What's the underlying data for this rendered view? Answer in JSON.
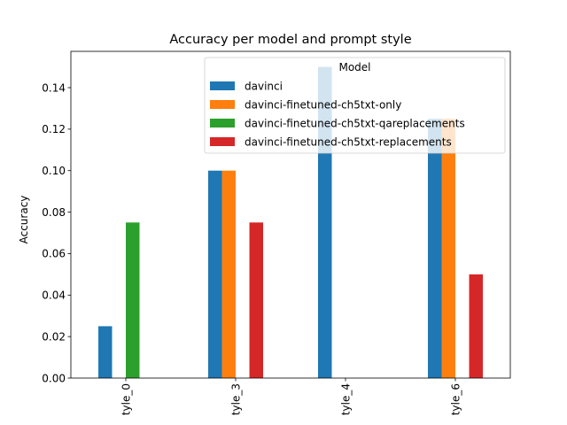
{
  "chart_data": {
    "type": "bar",
    "title": "Accuracy per model and prompt style",
    "xlabel": "",
    "ylabel": "Accuracy",
    "categories": [
      "tyle_0",
      "tyle_3",
      "tyle_4",
      "tyle_6"
    ],
    "ylim": [
      0,
      0.1575
    ],
    "yticks": [
      "0.00",
      "0.02",
      "0.04",
      "0.06",
      "0.08",
      "0.10",
      "0.12",
      "0.14"
    ],
    "legend": {
      "title": "Model",
      "placement": "upper-right"
    },
    "series": [
      {
        "name": "davinci",
        "color": "#1f77b4",
        "values": [
          0.025,
          0.1,
          0.15,
          0.125
        ]
      },
      {
        "name": "davinci-finetuned-ch5txt-only",
        "color": "#ff7f0e",
        "values": [
          0,
          0.1,
          0,
          0.125
        ]
      },
      {
        "name": "davinci-finetuned-ch5txt-qareplacements",
        "color": "#2ca02c",
        "values": [
          0.075,
          0,
          0,
          0
        ]
      },
      {
        "name": "davinci-finetuned-ch5txt-replacements",
        "color": "#d62728",
        "values": [
          0,
          0.075,
          0,
          0.05
        ]
      }
    ]
  }
}
